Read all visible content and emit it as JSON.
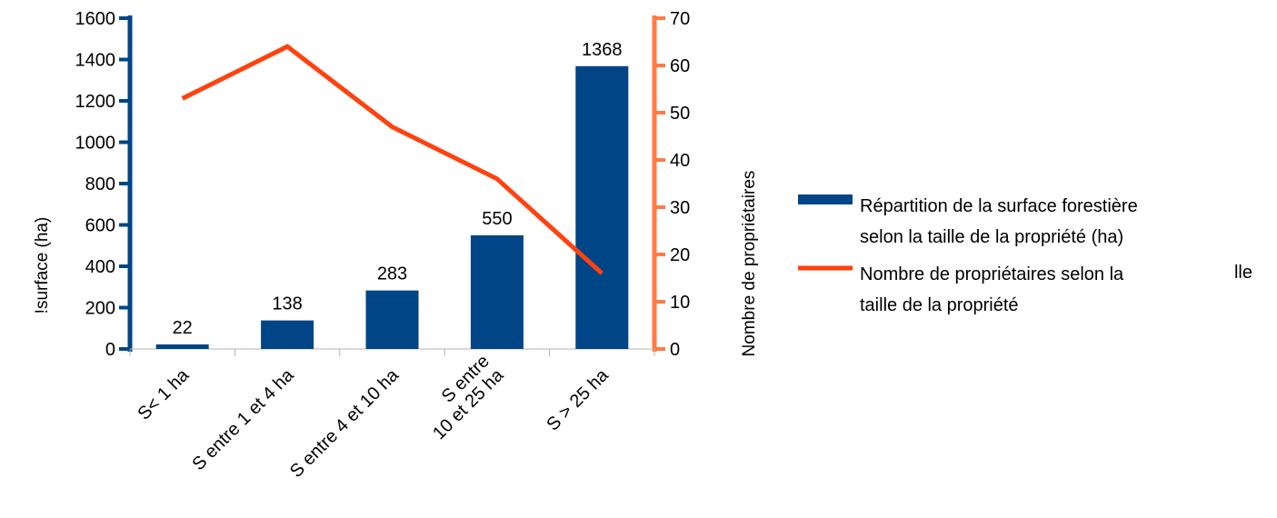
{
  "chart_data": {
    "type": "bar+line",
    "categories": [
      "S< 1 ha",
      "S entre 1 et 4 ha",
      "S entre 4 et 10 ha",
      "S entre\n10 et 25 ha",
      "S > 25 ha"
    ],
    "series": [
      {
        "name": "Répartition de la surface forestière selon la taille de la propriété (ha)",
        "type": "bar",
        "axis": "left",
        "values": [
          22,
          138,
          283,
          550,
          1368
        ],
        "data_labels": [
          "22",
          "138",
          "283",
          "550",
          "1368"
        ],
        "color": "#004586"
      },
      {
        "name": "Nombre de propriétaires selon la taille de la propriété",
        "type": "line",
        "axis": "right",
        "values": [
          53,
          64,
          47,
          36,
          16
        ],
        "color": "#ff420e"
      }
    ],
    "y_left": {
      "label": "!surface (ha)",
      "ylim": [
        0,
        1600
      ],
      "ticks": [
        "0",
        "200",
        "400",
        "600",
        "800",
        "1000",
        "1200",
        "1400",
        "1600"
      ],
      "axis_color": "#004586"
    },
    "y_right": {
      "label": "Nombre de propriétaires",
      "ylim": [
        0,
        70
      ],
      "ticks": [
        "0",
        "10",
        "20",
        "30",
        "40",
        "50",
        "60",
        "70"
      ],
      "axis_color": "#ff7a45"
    },
    "legend": {
      "placement": "right",
      "entries": [
        {
          "lines": [
            "Répartition de la surface forestière",
            "selon la taille de la propriété (ha)"
          ],
          "color": "#004586",
          "marker": "bar"
        },
        {
          "lines": [
            "Nombre de propriétaires selon la",
            "taille de la propriété"
          ],
          "color": "#ff420e",
          "marker": "line"
        }
      ],
      "stray_text": "lle"
    },
    "grid": false
  }
}
